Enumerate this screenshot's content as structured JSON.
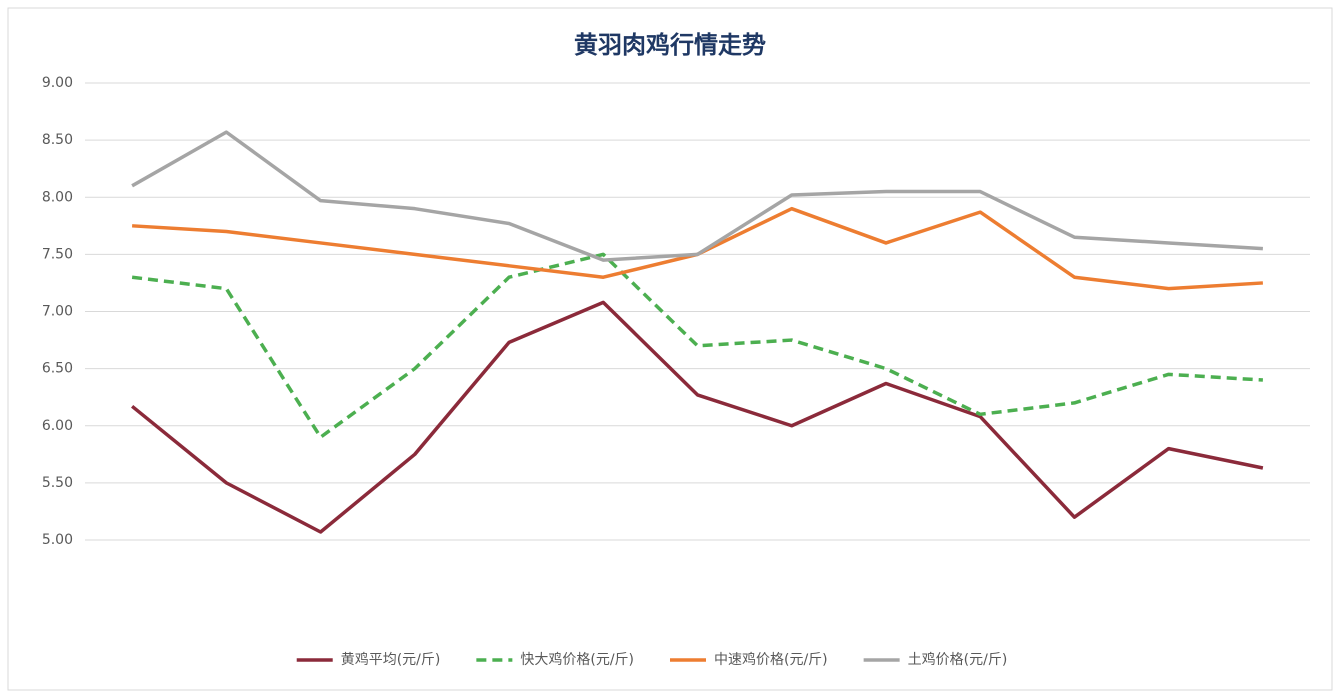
{
  "chart_data": {
    "type": "line",
    "title": "黄羽肉鸡行情走势",
    "categories": [
      null,
      null,
      null,
      null,
      null,
      null,
      null,
      null,
      null,
      null,
      null,
      null,
      null
    ],
    "series": [
      {
        "name": "黄鸡平均(元/斤)",
        "color": "#8b2a3a",
        "dash": false,
        "values": [
          6.17,
          5.5,
          5.07,
          5.75,
          6.73,
          7.08,
          6.27,
          6.0,
          6.37,
          6.08,
          5.2,
          5.8,
          5.63
        ]
      },
      {
        "name": "快大鸡价格(元/斤)",
        "color": "#4caf50",
        "dash": true,
        "values": [
          7.3,
          7.2,
          5.9,
          6.5,
          7.3,
          7.5,
          6.7,
          6.75,
          6.5,
          6.1,
          6.2,
          6.45,
          6.4
        ]
      },
      {
        "name": "中速鸡价格(元/斤)",
        "color": "#ed7d31",
        "dash": false,
        "values": [
          7.75,
          7.7,
          7.6,
          7.5,
          7.4,
          7.3,
          7.5,
          7.9,
          7.6,
          7.87,
          7.3,
          7.2,
          7.25
        ]
      },
      {
        "name": "土鸡价格(元/斤)",
        "color": "#a5a5a5",
        "dash": false,
        "values": [
          8.1,
          8.57,
          7.97,
          7.9,
          7.77,
          7.45,
          7.5,
          8.02,
          8.05,
          8.05,
          7.65,
          7.6,
          7.55
        ]
      }
    ],
    "ylim": [
      5,
      9
    ],
    "yticks": [
      {
        "value": 5,
        "label": "5.00"
      },
      {
        "value": 5.5,
        "label": "5.50"
      },
      {
        "value": 6,
        "label": "6.00"
      },
      {
        "value": 6.5,
        "label": "6.50"
      },
      {
        "value": 7,
        "label": "7.00"
      },
      {
        "value": 7.5,
        "label": "7.50"
      },
      {
        "value": 8,
        "label": "8.00"
      },
      {
        "value": 8.5,
        "label": "8.50"
      },
      {
        "value": 9,
        "label": "9.00"
      }
    ],
    "grid": true,
    "legend": "bottom"
  }
}
